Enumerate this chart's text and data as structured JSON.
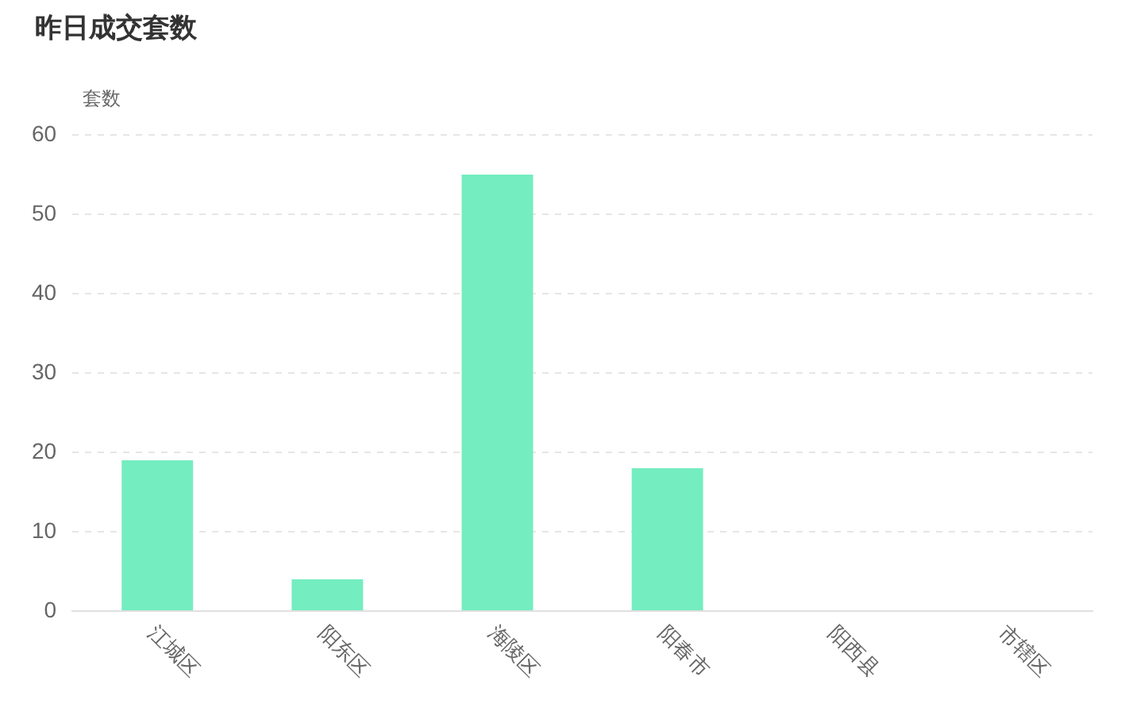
{
  "chart_data": {
    "type": "bar",
    "title": "昨日成交套数",
    "ylabel": "套数",
    "categories": [
      "江城区",
      "阳东区",
      "海陵区",
      "阳春市",
      "阳西县",
      "市辖区"
    ],
    "values": [
      19,
      4,
      55,
      18,
      0,
      0
    ],
    "color": "#74edc0",
    "ylim": [
      0,
      60
    ],
    "yticks": [
      0,
      10,
      20,
      30,
      40,
      50,
      60
    ],
    "grid": "y"
  }
}
